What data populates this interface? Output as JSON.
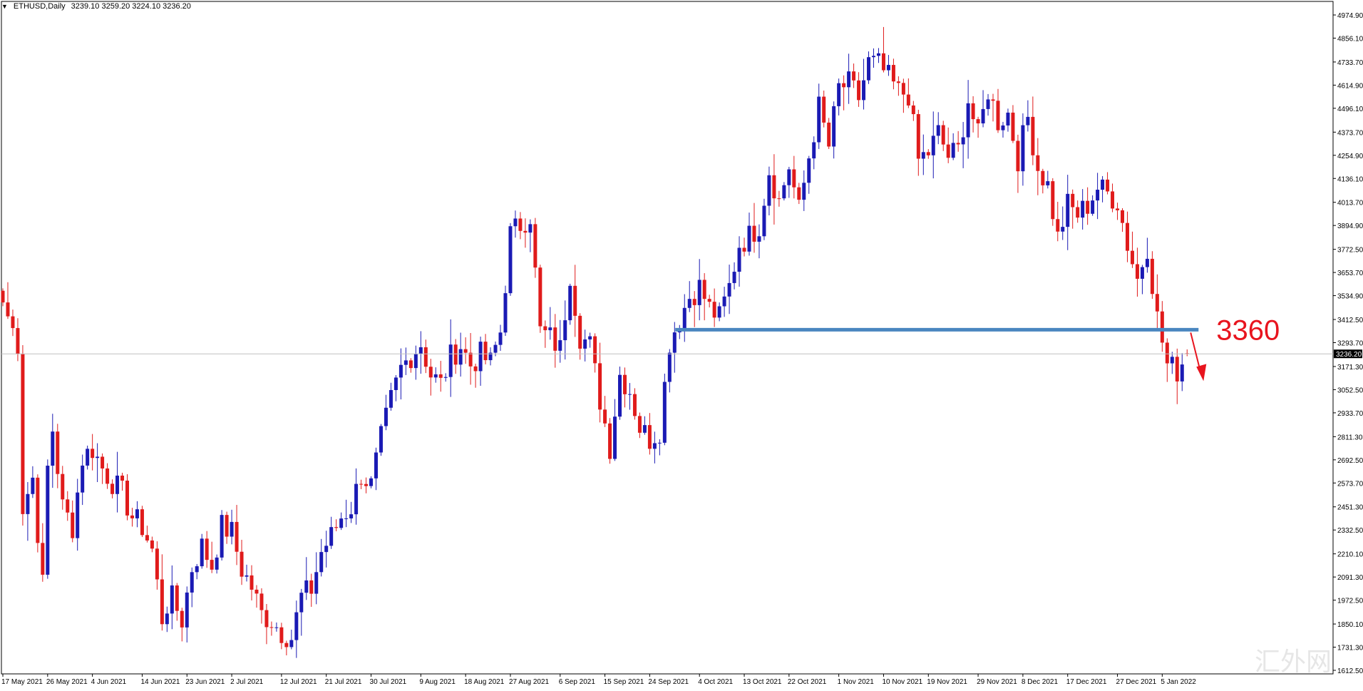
{
  "header": {
    "symbol": "ETHUSD,Daily",
    "ohlc": "3239.10 3259.20 3224.10 3236.20"
  },
  "annotation": {
    "label": "3360",
    "level": 3360,
    "color": "#e8141e",
    "line_color": "#4a86c0"
  },
  "current_price": {
    "value": 3236.2,
    "label": "3236.20"
  },
  "watermark": "汇外网",
  "colors": {
    "bull": "#1a1ab4",
    "bear": "#e01b1b",
    "axis": "#000000"
  },
  "chart_data": {
    "type": "candlestick",
    "title": "ETHUSD,Daily",
    "ylim": [
      1612.5,
      4974.9
    ],
    "y_ticks": [
      "4974.90",
      "4856.10",
      "4733.70",
      "4614.90",
      "4496.10",
      "4373.70",
      "4254.90",
      "4136.10",
      "4013.70",
      "3894.90",
      "3772.50",
      "3653.70",
      "3534.90",
      "3412.50",
      "3293.70",
      "3171.30",
      "3052.50",
      "2933.70",
      "2811.30",
      "2692.50",
      "2573.70",
      "2451.30",
      "2332.50",
      "2210.10",
      "2091.30",
      "1972.50",
      "1850.10",
      "1731.30",
      "1612.50"
    ],
    "x_ticks": [
      {
        "label": "17 May 2021",
        "bar": 0
      },
      {
        "label": "26 May 2021",
        "bar": 9
      },
      {
        "label": "4 Jun 2021",
        "bar": 18
      },
      {
        "label": "14 Jun 2021",
        "bar": 28
      },
      {
        "label": "23 Jun 2021",
        "bar": 37
      },
      {
        "label": "2 Jul 2021",
        "bar": 46
      },
      {
        "label": "12 Jul 2021",
        "bar": 56
      },
      {
        "label": "21 Jul 2021",
        "bar": 65
      },
      {
        "label": "30 Jul 2021",
        "bar": 74
      },
      {
        "label": "9 Aug 2021",
        "bar": 84
      },
      {
        "label": "18 Aug 2021",
        "bar": 93
      },
      {
        "label": "27 Aug 2021",
        "bar": 102
      },
      {
        "label": "6 Sep 2021",
        "bar": 112
      },
      {
        "label": "15 Sep 2021",
        "bar": 121
      },
      {
        "label": "24 Sep 2021",
        "bar": 130
      },
      {
        "label": "4 Oct 2021",
        "bar": 140
      },
      {
        "label": "13 Oct 2021",
        "bar": 149
      },
      {
        "label": "22 Oct 2021",
        "bar": 158
      },
      {
        "label": "1 Nov 2021",
        "bar": 168
      },
      {
        "label": "10 Nov 2021",
        "bar": 177
      },
      {
        "label": "19 Nov 2021",
        "bar": 186
      },
      {
        "label": "29 Nov 2021",
        "bar": 196
      },
      {
        "label": "8 Dec 2021",
        "bar": 205
      },
      {
        "label": "17 Dec 2021",
        "bar": 214
      },
      {
        "label": "27 Dec 2021",
        "bar": 224
      },
      {
        "label": "5 Jan 2022",
        "bar": 233
      }
    ],
    "series": [
      {
        "name": "ETHUSD",
        "ohlc_keyframes": [
          [
            0,
            3500
          ],
          [
            3,
            3290
          ],
          [
            4,
            2450
          ],
          [
            6,
            2600
          ],
          [
            8,
            2050
          ],
          [
            9,
            2650
          ],
          [
            10,
            2850
          ],
          [
            12,
            2450
          ],
          [
            14,
            2350
          ],
          [
            16,
            2700
          ],
          [
            18,
            2750
          ],
          [
            20,
            2650
          ],
          [
            22,
            2580
          ],
          [
            24,
            2520
          ],
          [
            26,
            2400
          ],
          [
            28,
            2350
          ],
          [
            30,
            2230
          ],
          [
            32,
            1880
          ],
          [
            33,
            1950
          ],
          [
            34,
            1980
          ],
          [
            36,
            1870
          ],
          [
            38,
            2140
          ],
          [
            40,
            2250
          ],
          [
            42,
            2150
          ],
          [
            44,
            2350
          ],
          [
            46,
            2320
          ],
          [
            48,
            2130
          ],
          [
            50,
            2040
          ],
          [
            52,
            1900
          ],
          [
            54,
            1870
          ],
          [
            56,
            1810
          ],
          [
            58,
            1780
          ],
          [
            60,
            1990
          ],
          [
            62,
            2030
          ],
          [
            64,
            2220
          ],
          [
            66,
            2300
          ],
          [
            68,
            2400
          ],
          [
            70,
            2450
          ],
          [
            72,
            2620
          ],
          [
            74,
            2560
          ],
          [
            76,
            2800
          ],
          [
            78,
            3000
          ],
          [
            80,
            3160
          ],
          [
            82,
            3230
          ],
          [
            84,
            3290
          ],
          [
            86,
            3130
          ],
          [
            88,
            3080
          ],
          [
            90,
            3220
          ],
          [
            92,
            3280
          ],
          [
            94,
            3180
          ],
          [
            96,
            3230
          ],
          [
            98,
            3190
          ],
          [
            100,
            3350
          ],
          [
            102,
            3850
          ],
          [
            104,
            3900
          ],
          [
            106,
            3950
          ],
          [
            108,
            3350
          ],
          [
            110,
            3320
          ],
          [
            112,
            3260
          ],
          [
            114,
            3650
          ],
          [
            116,
            3330
          ],
          [
            118,
            3280
          ],
          [
            120,
            3000
          ],
          [
            122,
            2760
          ],
          [
            124,
            3130
          ],
          [
            126,
            3050
          ],
          [
            128,
            2860
          ],
          [
            130,
            2800
          ],
          [
            132,
            2850
          ],
          [
            134,
            3300
          ],
          [
            136,
            3420
          ],
          [
            138,
            3530
          ],
          [
            140,
            3580
          ],
          [
            142,
            3470
          ],
          [
            144,
            3420
          ],
          [
            146,
            3580
          ],
          [
            148,
            3800
          ],
          [
            150,
            3840
          ],
          [
            152,
            3900
          ],
          [
            154,
            4180
          ],
          [
            156,
            4020
          ],
          [
            158,
            4200
          ],
          [
            160,
            3970
          ],
          [
            162,
            4250
          ],
          [
            164,
            4500
          ],
          [
            166,
            4300
          ],
          [
            168,
            4600
          ],
          [
            170,
            4620
          ],
          [
            172,
            4550
          ],
          [
            174,
            4730
          ],
          [
            176,
            4720
          ],
          [
            178,
            4650
          ],
          [
            180,
            4580
          ],
          [
            182,
            4570
          ],
          [
            184,
            4230
          ],
          [
            186,
            4270
          ],
          [
            188,
            4370
          ],
          [
            190,
            4250
          ],
          [
            192,
            4280
          ],
          [
            194,
            4540
          ],
          [
            196,
            4350
          ],
          [
            198,
            4590
          ],
          [
            200,
            4430
          ],
          [
            202,
            4470
          ],
          [
            204,
            4240
          ],
          [
            206,
            4450
          ],
          [
            208,
            4190
          ],
          [
            210,
            4100
          ],
          [
            212,
            3830
          ],
          [
            214,
            4000
          ],
          [
            216,
            3950
          ],
          [
            218,
            4000
          ],
          [
            220,
            4090
          ],
          [
            222,
            4060
          ],
          [
            224,
            4020
          ],
          [
            226,
            3800
          ],
          [
            228,
            3620
          ],
          [
            230,
            3790
          ],
          [
            232,
            3420
          ],
          [
            234,
            3180
          ],
          [
            236,
            3150
          ],
          [
            238,
            3240
          ]
        ],
        "last_bar": {
          "open": 3239.1,
          "high": 3259.2,
          "low": 3224.1,
          "close": 3236.2
        }
      }
    ]
  }
}
